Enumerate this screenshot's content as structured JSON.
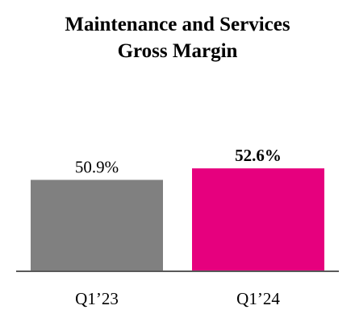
{
  "chart_data": {
    "type": "bar",
    "title": [
      "Maintenance and Services",
      "Gross Margin"
    ],
    "categories": [
      "Q1’23",
      "Q1’24"
    ],
    "values": [
      50.9,
      52.6
    ],
    "value_labels": [
      "50.9%",
      "52.6%"
    ],
    "value_label_bold": [
      false,
      true
    ],
    "colors": [
      "#808080",
      "#e6007e"
    ],
    "axis_color": "#595959",
    "xlabel": "",
    "ylabel": "",
    "grid": false,
    "legend": "none"
  }
}
